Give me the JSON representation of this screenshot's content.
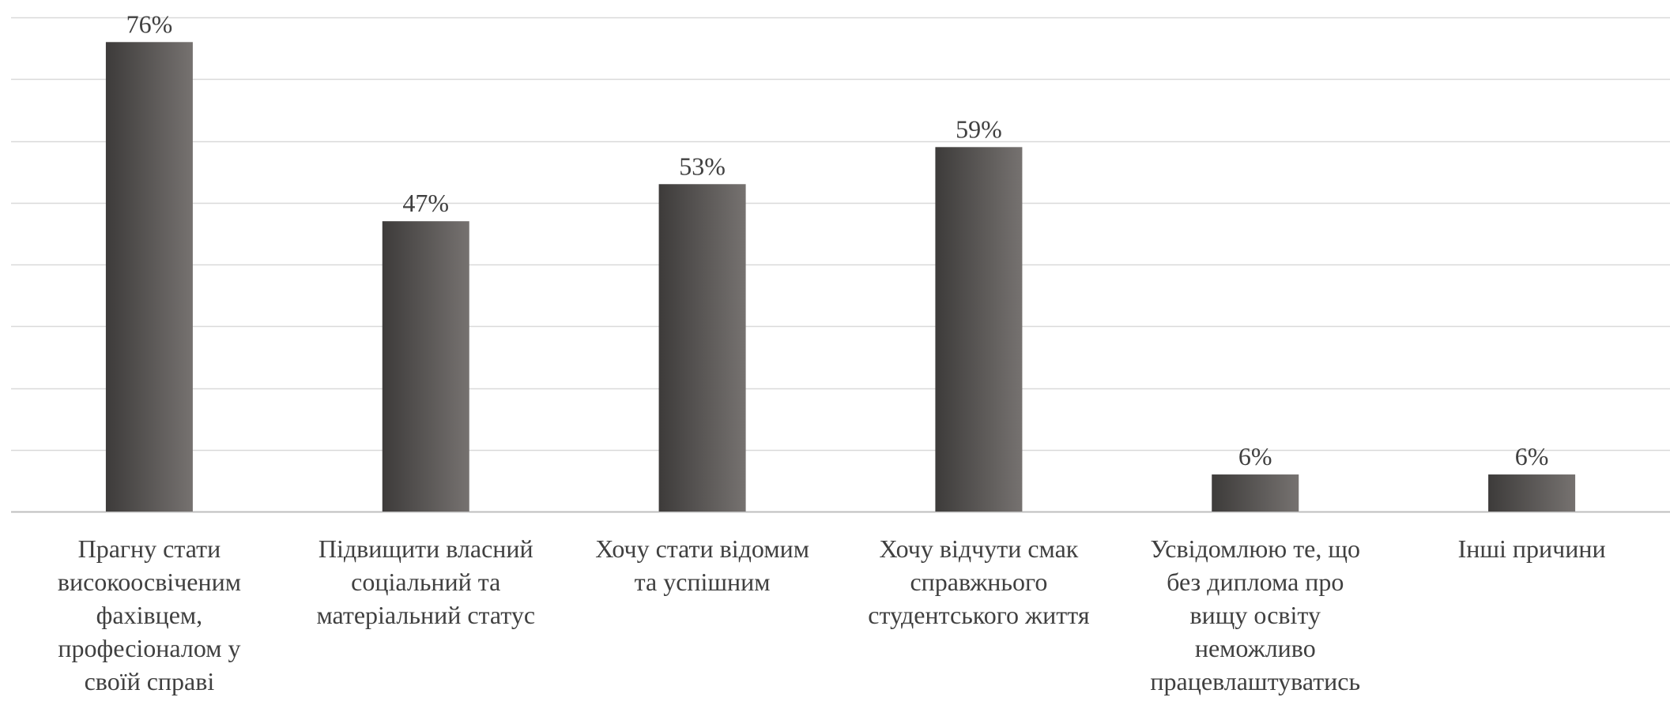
{
  "chart_data": {
    "type": "bar",
    "categories": [
      [
        "Прагну стати",
        "високоосвіченим",
        "фахівцем,",
        "професіоналом у",
        "своїй справі"
      ],
      [
        "Підвищити власний",
        "соціальний та",
        "матеріальний статус"
      ],
      [
        "Хочу стати відомим",
        "та успішним"
      ],
      [
        "Хочу відчути смак",
        "справжнього",
        "студентського життя"
      ],
      [
        "Усвідомлюю те, що",
        "без диплома про",
        "вищу освіту",
        "неможливо",
        "працевлаштуватись"
      ],
      [
        "Інші причини"
      ]
    ],
    "values": [
      76,
      47,
      53,
      59,
      6,
      6
    ],
    "data_labels": [
      "76%",
      "47%",
      "53%",
      "59%",
      "6%",
      "6%"
    ],
    "ylim": [
      0,
      80
    ],
    "grid": true,
    "title": "",
    "xlabel": "",
    "ylabel": "",
    "colors": {
      "bar_dark": "#3d3b3a",
      "bar_light": "#767270",
      "grid": "#d9d9d9",
      "axis": "#bfbfbf",
      "text": "#404040"
    }
  }
}
